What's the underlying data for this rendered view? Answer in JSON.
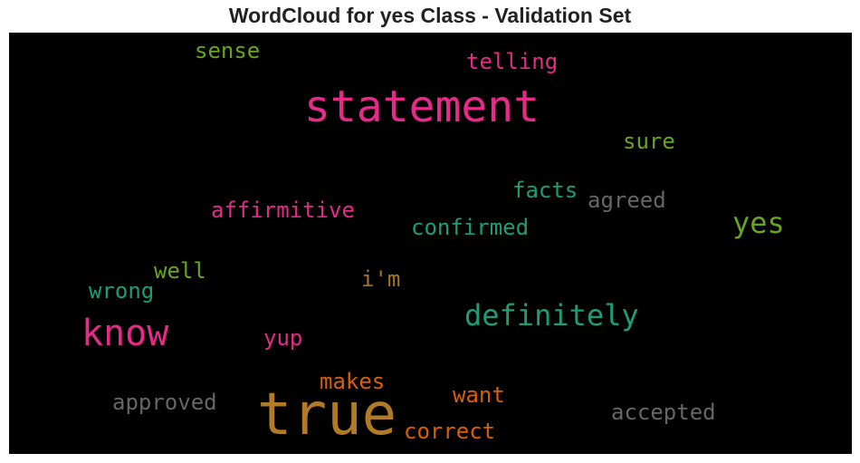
{
  "chart_data": {
    "type": "wordcloud",
    "title": "WordCloud for yes Class - Validation Set",
    "background": "#000000",
    "words": [
      {
        "text": "true",
        "size": 64,
        "color": "#b07a26"
      },
      {
        "text": "statement",
        "size": 48,
        "color": "#e7298a"
      },
      {
        "text": "know",
        "size": 40,
        "color": "#e7298a"
      },
      {
        "text": "definitely",
        "size": 32,
        "color": "#1b9e77"
      },
      {
        "text": "yes",
        "size": 32,
        "color": "#66a61e"
      },
      {
        "text": "affirmitive",
        "size": 24,
        "color": "#e7298a"
      },
      {
        "text": "confirmed",
        "size": 24,
        "color": "#1b9e77"
      },
      {
        "text": "approved",
        "size": 24,
        "color": "#666666"
      },
      {
        "text": "accepted",
        "size": 24,
        "color": "#666666"
      },
      {
        "text": "agreed",
        "size": 24,
        "color": "#666666"
      },
      {
        "text": "facts",
        "size": 24,
        "color": "#1b9e77"
      },
      {
        "text": "telling",
        "size": 24,
        "color": "#e7298a"
      },
      {
        "text": "sense",
        "size": 24,
        "color": "#66a61e"
      },
      {
        "text": "sure",
        "size": 24,
        "color": "#66a61e"
      },
      {
        "text": "well",
        "size": 24,
        "color": "#66a61e"
      },
      {
        "text": "wrong",
        "size": 24,
        "color": "#1b9e77"
      },
      {
        "text": "i'm",
        "size": 24,
        "color": "#a6761d"
      },
      {
        "text": "yup",
        "size": 24,
        "color": "#e7298a"
      },
      {
        "text": "makes",
        "size": 24,
        "color": "#d95f02"
      },
      {
        "text": "want",
        "size": 24,
        "color": "#d95f02"
      },
      {
        "text": "correct",
        "size": 24,
        "color": "#d95f02"
      }
    ]
  }
}
